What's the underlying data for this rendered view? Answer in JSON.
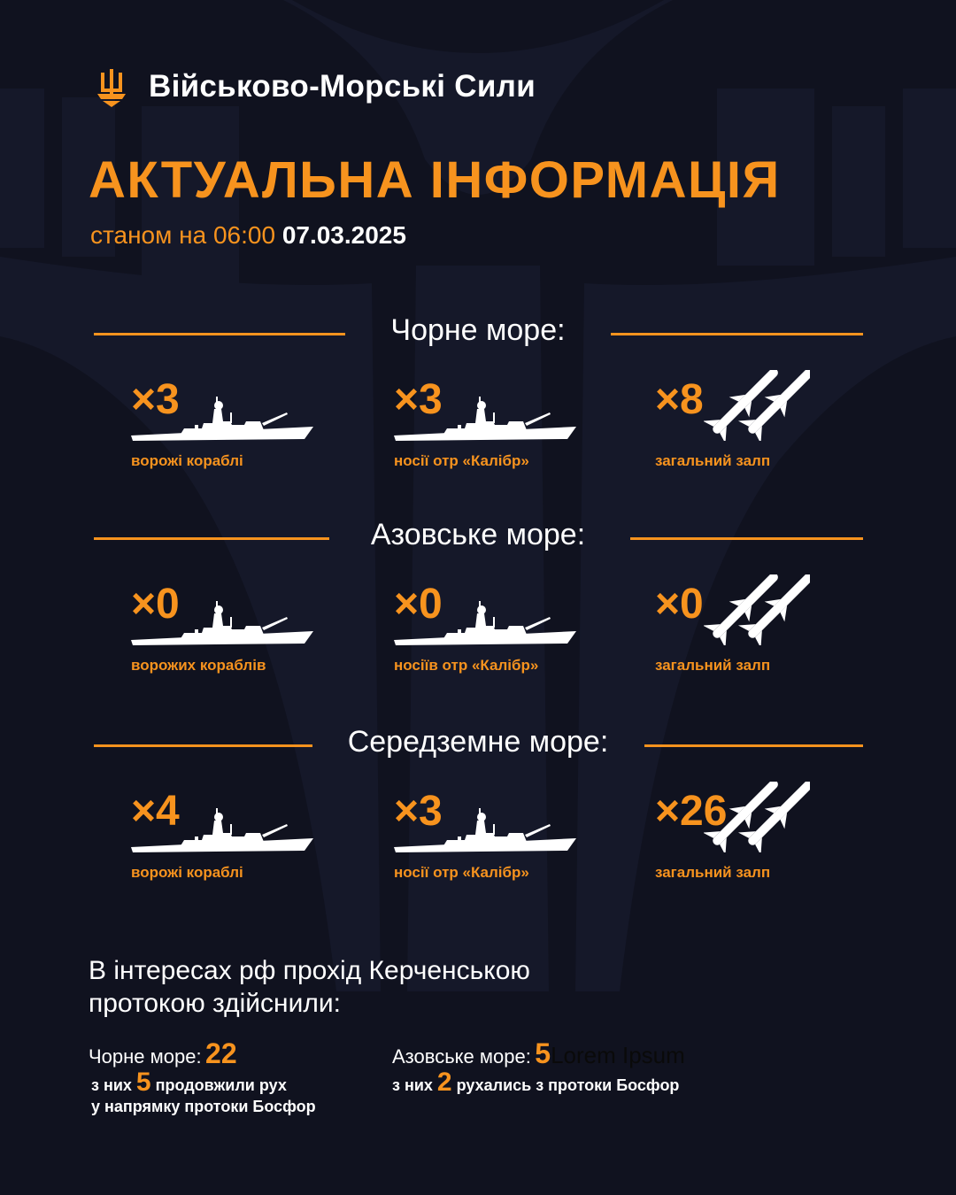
{
  "header": {
    "brand": "Військово-Морські Сили",
    "title": "АКТУАЛЬНА ІНФОРМАЦІЯ",
    "as_of_prefix": "станом на 06:00",
    "date": "07.03.2025",
    "logo_icon": "trident-anchor-icon"
  },
  "colors": {
    "accent": "#f7931e",
    "background": "#10121f"
  },
  "sections": [
    {
      "title": "Чорне море:",
      "items": [
        {
          "count": "×3",
          "label": "ворожі кораблі",
          "icon": "warship-icon"
        },
        {
          "count": "×3",
          "label": "носії отр «Калібр»",
          "icon": "warship-icon"
        },
        {
          "count": "×8",
          "label": "загальний залп",
          "icon": "missiles-icon"
        }
      ]
    },
    {
      "title": "Азовське море:",
      "items": [
        {
          "count": "×0",
          "label": "ворожих кораблів",
          "icon": "warship-icon"
        },
        {
          "count": "×0",
          "label": "носіїв отр «Калібр»",
          "icon": "warship-icon"
        },
        {
          "count": "×0",
          "label": "загальний залп",
          "icon": "missiles-icon"
        }
      ]
    },
    {
      "title": "Середземне море:",
      "items": [
        {
          "count": "×4",
          "label": "ворожі кораблі",
          "icon": "warship-icon"
        },
        {
          "count": "×3",
          "label": "носії отр «Калібр»",
          "icon": "warship-icon"
        },
        {
          "count": "×26",
          "label": "загальний залп",
          "icon": "missiles-icon"
        }
      ]
    }
  ],
  "kerch": {
    "intro_line1": "В інтересах рф прохід Керченською",
    "intro_line2": "протокою здійснили:",
    "black": {
      "label": "Чорне море:",
      "value": "22",
      "pre": "з них",
      "num": "5",
      "post": "продовжили рух",
      "line2": "у напрямку протоки Босфор"
    },
    "azov": {
      "label": "Азовське море:",
      "value": "5",
      "extra": "Lorem Ipsum",
      "pre": "з них",
      "num": "2",
      "post": "рухались з протоки Босфор"
    }
  }
}
